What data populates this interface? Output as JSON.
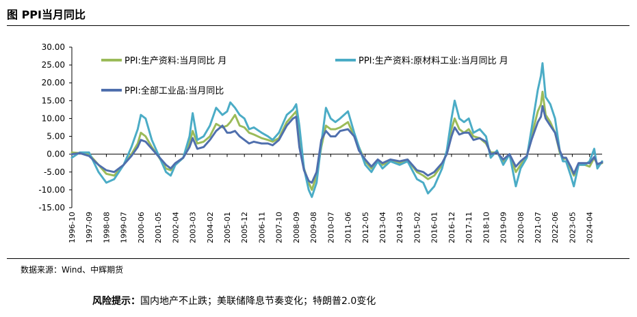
{
  "figure_title": "图  PPI当月同比",
  "source": "数据来源：Wind、中辉期货",
  "risk_label": "风险提示：",
  "risk_text": "国内地产不止跌；美联储降息节奏变化；特朗普2.0变化",
  "chart_data": {
    "type": "line",
    "ylim": [
      -15,
      30
    ],
    "yticks": [
      "30.00",
      "25.00",
      "20.00",
      "15.00",
      "10.00",
      "5.00",
      "0.00",
      "-5.00",
      "-10.00",
      "-15.00"
    ],
    "xticks": [
      "1996-10",
      "1997-09",
      "1998-08",
      "1999-07",
      "2000-06",
      "2001-05",
      "2002-04",
      "2003-03",
      "2004-02",
      "2005-01",
      "2005-12",
      "2006-11",
      "2007-10",
      "2008-09",
      "2009-08",
      "2010-07",
      "2011-06",
      "2012-05",
      "2013-04",
      "2014-03",
      "2015-02",
      "2016-01",
      "2016-12",
      "2017-11",
      "2018-10",
      "2019-09",
      "2020-08",
      "2021-07",
      "2022-06",
      "2023-05",
      "2024-04"
    ],
    "legend": [
      "PPI:生产资料:当月同比 月",
      "PPI:生产资料:原材料工业:当月同比 月",
      "PPI:全部工业品:当月同比"
    ],
    "colors": {
      "green": "#9bbb59",
      "cyan": "#4bacc6",
      "blue": "#4f6fad"
    },
    "series": [
      {
        "name": "PPI:生产资料:当月同比 月",
        "color": "#9bbb59",
        "points": [
          [
            "1996-10",
            0.5
          ],
          [
            "1997-03",
            0.3
          ],
          [
            "1997-09",
            0
          ],
          [
            "1998-03",
            -3
          ],
          [
            "1998-08",
            -5.5
          ],
          [
            "1999-01",
            -6
          ],
          [
            "1999-07",
            -3
          ],
          [
            "1999-12",
            0
          ],
          [
            "2000-04",
            3
          ],
          [
            "2000-06",
            6
          ],
          [
            "2000-09",
            5
          ],
          [
            "2001-01",
            2
          ],
          [
            "2001-05",
            -0.5
          ],
          [
            "2001-10",
            -4
          ],
          [
            "2002-01",
            -4.5
          ],
          [
            "2002-04",
            -3
          ],
          [
            "2002-09",
            -1
          ],
          [
            "2003-01",
            3
          ],
          [
            "2003-03",
            6.5
          ],
          [
            "2003-06",
            3
          ],
          [
            "2003-10",
            3.5
          ],
          [
            "2004-02",
            5
          ],
          [
            "2004-06",
            8.5
          ],
          [
            "2004-10",
            7.5
          ],
          [
            "2005-01",
            8
          ],
          [
            "2005-03",
            9
          ],
          [
            "2005-06",
            11
          ],
          [
            "2005-09",
            8
          ],
          [
            "2005-12",
            7.5
          ],
          [
            "2006-03",
            6
          ],
          [
            "2006-06",
            5.5
          ],
          [
            "2006-11",
            4.5
          ],
          [
            "2007-03",
            4
          ],
          [
            "2007-06",
            3.5
          ],
          [
            "2007-10",
            4.5
          ],
          [
            "2008-03",
            9
          ],
          [
            "2008-07",
            11
          ],
          [
            "2008-09",
            12
          ],
          [
            "2008-11",
            5
          ],
          [
            "2009-02",
            -4
          ],
          [
            "2009-05",
            -8
          ],
          [
            "2009-07",
            -10
          ],
          [
            "2009-10",
            -6
          ],
          [
            "2010-01",
            2
          ],
          [
            "2010-04",
            8
          ],
          [
            "2010-07",
            7
          ],
          [
            "2010-10",
            7
          ],
          [
            "2011-01",
            7.5
          ],
          [
            "2011-06",
            9
          ],
          [
            "2011-10",
            5
          ],
          [
            "2012-01",
            2
          ],
          [
            "2012-05",
            -2
          ],
          [
            "2012-09",
            -4
          ],
          [
            "2013-01",
            -2
          ],
          [
            "2013-04",
            -3
          ],
          [
            "2013-09",
            -2
          ],
          [
            "2014-03",
            -2.5
          ],
          [
            "2014-08",
            -1.5
          ],
          [
            "2015-02",
            -5
          ],
          [
            "2015-06",
            -6
          ],
          [
            "2015-09",
            -7
          ],
          [
            "2016-01",
            -6
          ],
          [
            "2016-06",
            -3
          ],
          [
            "2016-09",
            0.5
          ],
          [
            "2016-12",
            7
          ],
          [
            "2017-02",
            10
          ],
          [
            "2017-05",
            7
          ],
          [
            "2017-08",
            6
          ],
          [
            "2017-11",
            7
          ],
          [
            "2018-02",
            5
          ],
          [
            "2018-06",
            4.5
          ],
          [
            "2018-10",
            3
          ],
          [
            "2019-01",
            0.5
          ],
          [
            "2019-05",
            0.5
          ],
          [
            "2019-09",
            -2
          ],
          [
            "2020-01",
            0
          ],
          [
            "2020-05",
            -5
          ],
          [
            "2020-08",
            -3
          ],
          [
            "2020-12",
            -0.5
          ],
          [
            "2021-03",
            5
          ],
          [
            "2021-07",
            12
          ],
          [
            "2021-09",
            14
          ],
          [
            "2021-10",
            17.5
          ],
          [
            "2021-12",
            11
          ],
          [
            "2022-03",
            9
          ],
          [
            "2022-06",
            6
          ],
          [
            "2022-09",
            0.5
          ],
          [
            "2022-11",
            -1.5
          ],
          [
            "2023-01",
            -1
          ],
          [
            "2023-04",
            -4
          ],
          [
            "2023-06",
            -6
          ],
          [
            "2023-09",
            -3
          ],
          [
            "2024-01",
            -3
          ],
          [
            "2024-04",
            -3.5
          ],
          [
            "2024-07",
            -1
          ],
          [
            "2024-09",
            -3
          ],
          [
            "2024-12",
            -2.5
          ]
        ]
      },
      {
        "name": "PPI:生产资料:原材料工业:当月同比 月",
        "color": "#4bacc6",
        "points": [
          [
            "1996-10",
            -1
          ],
          [
            "1997-03",
            0.5
          ],
          [
            "1997-09",
            0.5
          ],
          [
            "1998-03",
            -5
          ],
          [
            "1998-08",
            -8
          ],
          [
            "1999-01",
            -7
          ],
          [
            "1999-07",
            -3
          ],
          [
            "1999-12",
            2
          ],
          [
            "2000-04",
            7
          ],
          [
            "2000-06",
            11
          ],
          [
            "2000-09",
            10
          ],
          [
            "2001-01",
            4
          ],
          [
            "2001-05",
            0
          ],
          [
            "2001-10",
            -5
          ],
          [
            "2002-01",
            -6
          ],
          [
            "2002-04",
            -3
          ],
          [
            "2002-09",
            -1
          ],
          [
            "2003-01",
            5
          ],
          [
            "2003-03",
            11.5
          ],
          [
            "2003-06",
            4
          ],
          [
            "2003-10",
            5
          ],
          [
            "2004-02",
            8
          ],
          [
            "2004-06",
            13
          ],
          [
            "2004-10",
            11
          ],
          [
            "2005-01",
            12
          ],
          [
            "2005-03",
            14.5
          ],
          [
            "2005-06",
            13
          ],
          [
            "2005-09",
            11
          ],
          [
            "2005-12",
            10
          ],
          [
            "2006-03",
            7
          ],
          [
            "2006-06",
            7.5
          ],
          [
            "2006-11",
            6
          ],
          [
            "2007-03",
            5
          ],
          [
            "2007-06",
            4
          ],
          [
            "2007-10",
            6
          ],
          [
            "2008-03",
            11
          ],
          [
            "2008-07",
            12.5
          ],
          [
            "2008-09",
            14
          ],
          [
            "2008-11",
            8
          ],
          [
            "2009-02",
            -4
          ],
          [
            "2009-05",
            -10
          ],
          [
            "2009-07",
            -12
          ],
          [
            "2009-10",
            -8
          ],
          [
            "2010-01",
            3
          ],
          [
            "2010-04",
            13
          ],
          [
            "2010-07",
            10
          ],
          [
            "2010-10",
            9
          ],
          [
            "2011-01",
            10
          ],
          [
            "2011-06",
            12
          ],
          [
            "2011-10",
            6
          ],
          [
            "2012-01",
            2
          ],
          [
            "2012-05",
            -3
          ],
          [
            "2012-09",
            -5
          ],
          [
            "2013-01",
            -2
          ],
          [
            "2013-04",
            -4
          ],
          [
            "2013-09",
            -2
          ],
          [
            "2014-03",
            -3
          ],
          [
            "2014-08",
            -2
          ],
          [
            "2015-02",
            -7
          ],
          [
            "2015-06",
            -8
          ],
          [
            "2015-09",
            -11
          ],
          [
            "2016-01",
            -9
          ],
          [
            "2016-06",
            -4
          ],
          [
            "2016-09",
            1
          ],
          [
            "2016-12",
            10
          ],
          [
            "2017-02",
            15
          ],
          [
            "2017-05",
            10
          ],
          [
            "2017-08",
            9
          ],
          [
            "2017-11",
            10
          ],
          [
            "2018-02",
            6
          ],
          [
            "2018-06",
            7
          ],
          [
            "2018-10",
            5
          ],
          [
            "2019-01",
            -1
          ],
          [
            "2019-05",
            1
          ],
          [
            "2019-09",
            -3
          ],
          [
            "2020-01",
            0
          ],
          [
            "2020-05",
            -9
          ],
          [
            "2020-08",
            -4
          ],
          [
            "2020-12",
            -1
          ],
          [
            "2021-03",
            7
          ],
          [
            "2021-07",
            18
          ],
          [
            "2021-09",
            22
          ],
          [
            "2021-10",
            25.5
          ],
          [
            "2021-12",
            16
          ],
          [
            "2022-03",
            14
          ],
          [
            "2022-06",
            10
          ],
          [
            "2022-09",
            1
          ],
          [
            "2022-11",
            -2
          ],
          [
            "2023-01",
            -2
          ],
          [
            "2023-04",
            -6
          ],
          [
            "2023-06",
            -9
          ],
          [
            "2023-09",
            -3
          ],
          [
            "2024-01",
            -3
          ],
          [
            "2024-04",
            -2
          ],
          [
            "2024-07",
            1.5
          ],
          [
            "2024-09",
            -4
          ],
          [
            "2024-12",
            -2
          ]
        ]
      },
      {
        "name": "PPI:全部工业品:当月同比",
        "color": "#4f6fad",
        "points": [
          [
            "1996-10",
            0
          ],
          [
            "1997-03",
            0.3
          ],
          [
            "1997-09",
            -0.5
          ],
          [
            "1998-03",
            -3
          ],
          [
            "1998-08",
            -4.5
          ],
          [
            "1999-01",
            -5
          ],
          [
            "1999-07",
            -3
          ],
          [
            "1999-12",
            -0.5
          ],
          [
            "2000-04",
            2
          ],
          [
            "2000-06",
            4
          ],
          [
            "2000-09",
            3.5
          ],
          [
            "2001-01",
            1.5
          ],
          [
            "2001-05",
            -0.5
          ],
          [
            "2001-10",
            -3
          ],
          [
            "2002-01",
            -4
          ],
          [
            "2002-04",
            -2.5
          ],
          [
            "2002-09",
            -1
          ],
          [
            "2003-01",
            2
          ],
          [
            "2003-03",
            4.5
          ],
          [
            "2003-06",
            1.5
          ],
          [
            "2003-10",
            2
          ],
          [
            "2004-02",
            4
          ],
          [
            "2004-06",
            6.5
          ],
          [
            "2004-10",
            8
          ],
          [
            "2005-01",
            6
          ],
          [
            "2005-03",
            6
          ],
          [
            "2005-06",
            6.5
          ],
          [
            "2005-09",
            5
          ],
          [
            "2005-12",
            4
          ],
          [
            "2006-03",
            3
          ],
          [
            "2006-06",
            3.5
          ],
          [
            "2006-11",
            3
          ],
          [
            "2007-03",
            3
          ],
          [
            "2007-06",
            2.5
          ],
          [
            "2007-10",
            4
          ],
          [
            "2008-03",
            8
          ],
          [
            "2008-07",
            10
          ],
          [
            "2008-09",
            10.5
          ],
          [
            "2008-11",
            2
          ],
          [
            "2009-02",
            -4.5
          ],
          [
            "2009-05",
            -7.5
          ],
          [
            "2009-07",
            -8
          ],
          [
            "2009-10",
            -5
          ],
          [
            "2010-01",
            4
          ],
          [
            "2010-04",
            6.5
          ],
          [
            "2010-07",
            5
          ],
          [
            "2010-10",
            5
          ],
          [
            "2011-01",
            6.5
          ],
          [
            "2011-06",
            7
          ],
          [
            "2011-10",
            5
          ],
          [
            "2012-01",
            1
          ],
          [
            "2012-05",
            -1.5
          ],
          [
            "2012-09",
            -3.5
          ],
          [
            "2013-01",
            -1.5
          ],
          [
            "2013-04",
            -2.5
          ],
          [
            "2013-09",
            -1.5
          ],
          [
            "2014-03",
            -2
          ],
          [
            "2014-08",
            -1.5
          ],
          [
            "2015-02",
            -4.5
          ],
          [
            "2015-06",
            -5
          ],
          [
            "2015-09",
            -6
          ],
          [
            "2016-01",
            -5
          ],
          [
            "2016-06",
            -2.5
          ],
          [
            "2016-09",
            0
          ],
          [
            "2016-12",
            5
          ],
          [
            "2017-02",
            7.5
          ],
          [
            "2017-05",
            5.5
          ],
          [
            "2017-08",
            6
          ],
          [
            "2017-11",
            6
          ],
          [
            "2018-02",
            4
          ],
          [
            "2018-06",
            4.5
          ],
          [
            "2018-10",
            3.5
          ],
          [
            "2019-01",
            0
          ],
          [
            "2019-05",
            0.5
          ],
          [
            "2019-09",
            -1.5
          ],
          [
            "2020-01",
            0
          ],
          [
            "2020-05",
            -3.5
          ],
          [
            "2020-08",
            -2
          ],
          [
            "2020-12",
            -0.5
          ],
          [
            "2021-03",
            4
          ],
          [
            "2021-07",
            9
          ],
          [
            "2021-09",
            10.5
          ],
          [
            "2021-10",
            13.5
          ],
          [
            "2021-12",
            10
          ],
          [
            "2022-03",
            8
          ],
          [
            "2022-06",
            6
          ],
          [
            "2022-09",
            1
          ],
          [
            "2022-11",
            -1
          ],
          [
            "2023-01",
            -1
          ],
          [
            "2023-04",
            -3.5
          ],
          [
            "2023-06",
            -5.5
          ],
          [
            "2023-09",
            -2.5
          ],
          [
            "2024-01",
            -2.5
          ],
          [
            "2024-04",
            -2.5
          ],
          [
            "2024-07",
            -0.8
          ],
          [
            "2024-09",
            -2.8
          ],
          [
            "2024-12",
            -2.3
          ]
        ]
      }
    ]
  }
}
